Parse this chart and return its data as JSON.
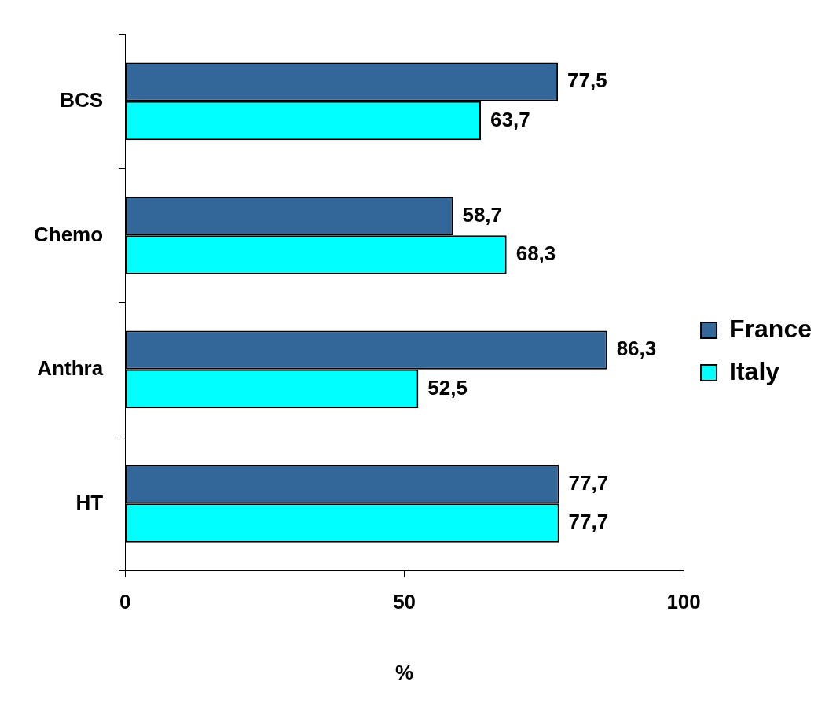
{
  "chart_data": {
    "type": "bar",
    "orientation": "horizontal",
    "categories": [
      "BCS",
      "Chemo",
      "Anthra",
      "HT"
    ],
    "xlabel": "%",
    "xlim": [
      0,
      100
    ],
    "xticks": [
      0,
      50,
      100
    ],
    "grid": false,
    "legend": "right",
    "series": [
      {
        "name": "France",
        "color": "#336699",
        "values": [
          77.5,
          58.7,
          86.3,
          77.7
        ],
        "value_labels": [
          "77,5",
          "58,7",
          "86,3",
          "77,7"
        ]
      },
      {
        "name": "Italy",
        "color": "#00ffff",
        "values": [
          63.7,
          68.3,
          52.5,
          77.7
        ],
        "value_labels": [
          "63,7",
          "68,3",
          "52,5",
          "77,7"
        ]
      }
    ]
  }
}
